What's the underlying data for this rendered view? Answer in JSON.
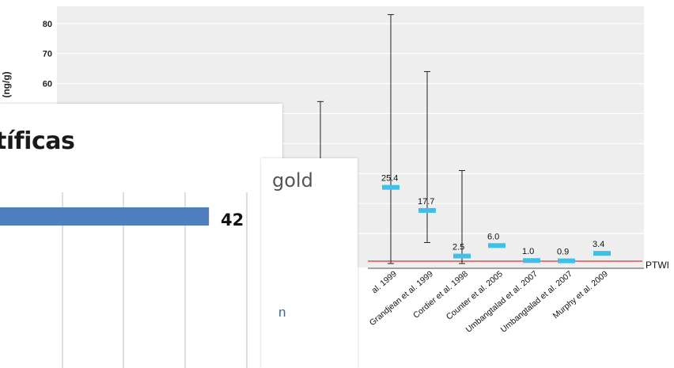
{
  "chart_data": [
    {
      "type": "scatter",
      "title": "",
      "ylabel": "(ng/g)",
      "yticks": [
        60,
        70,
        80
      ],
      "ylim": [
        0,
        86
      ],
      "grid": true,
      "reference_line": {
        "label": "PTWI",
        "value": 1.0,
        "color": "#e03030"
      },
      "series": [
        {
          "name": "",
          "color": "#3fc0ea",
          "points": [
            {
              "study": "",
              "value": null,
              "label": "",
              "upper": 54
            },
            {
              "study": "al. 1999",
              "value": 25.4,
              "label": "25.4",
              "upper": 83,
              "lower": 0
            },
            {
              "study": "Grandjean et al. 1999",
              "value": 17.7,
              "label": "17.7",
              "upper": 64,
              "lower": 7
            },
            {
              "study": "Cordier et al. 1998",
              "value": 2.5,
              "label": "2.5",
              "upper": 31,
              "lower": 0
            },
            {
              "study": "Counter et al. 2005",
              "value": 6.0,
              "label": "6.0"
            },
            {
              "study": "Umbangtalad et al. 2007",
              "value": 1.0,
              "label": "1.0"
            },
            {
              "study": "Umbangtalad et al. 2007",
              "value": 0.9,
              "label": "0.9"
            },
            {
              "study": "Murphy et al. 2009",
              "value": 3.4,
              "label": "3.4"
            }
          ]
        }
      ]
    },
    {
      "type": "bar",
      "title": "tíficas",
      "categories": [
        ""
      ],
      "values": [
        42
      ],
      "value_labels": [
        "42"
      ],
      "color": "#4f7fbf"
    }
  ],
  "gold_panel": {
    "title": "gold",
    "text": "n"
  }
}
